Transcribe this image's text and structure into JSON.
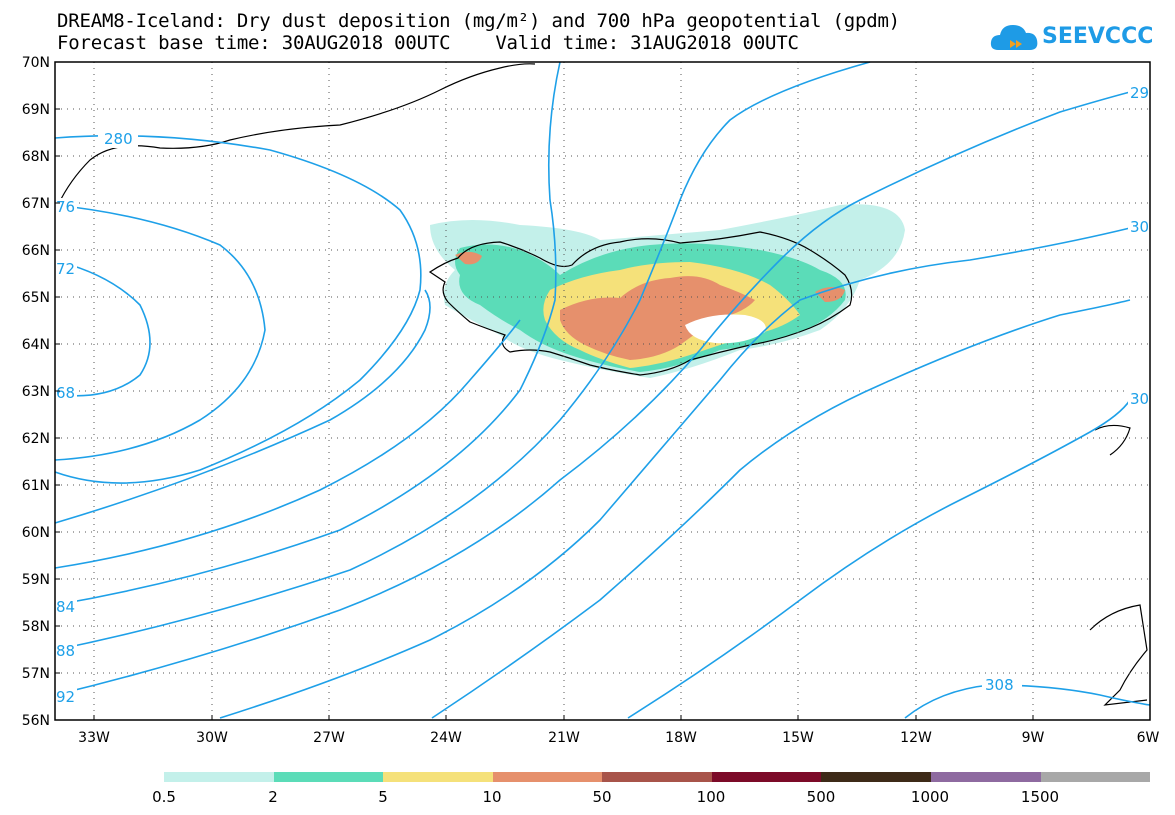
{
  "header": {
    "line1": "DREAM8-Iceland: Dry dust deposition (mg/m²) and 700 hPa geopotential (gpdm)",
    "line2": "Forecast base time: 30AUG2018 00UTC    Valid time: 31AUG2018 00UTC"
  },
  "logo": {
    "text": "SEEVCCC",
    "color": "#1e9be6"
  },
  "map": {
    "lat_labels": [
      "70N",
      "69N",
      "68N",
      "67N",
      "66N",
      "65N",
      "64N",
      "63N",
      "62N",
      "61N",
      "60N",
      "59N",
      "58N",
      "57N",
      "56N"
    ],
    "lon_labels": [
      "33W",
      "30W",
      "27W",
      "24W",
      "21W",
      "18W",
      "15W",
      "12W",
      "9W",
      "6W"
    ],
    "contour_color": "#1ea0e8",
    "contour_labels": [
      "280",
      "29",
      "30",
      "30",
      "308",
      "76",
      "72",
      "68",
      "84",
      "88",
      "92"
    ]
  },
  "colorbar": {
    "colors": [
      "#c3f0ea",
      "#5bdcb8",
      "#f5e17a",
      "#e6906c",
      "#a8544a",
      "#7c0a28",
      "#3e2a18",
      "#8e6aa0",
      "#a8a8a8"
    ],
    "labels": [
      "0.5",
      "2",
      "5",
      "10",
      "50",
      "100",
      "500",
      "1000",
      "1500"
    ]
  }
}
